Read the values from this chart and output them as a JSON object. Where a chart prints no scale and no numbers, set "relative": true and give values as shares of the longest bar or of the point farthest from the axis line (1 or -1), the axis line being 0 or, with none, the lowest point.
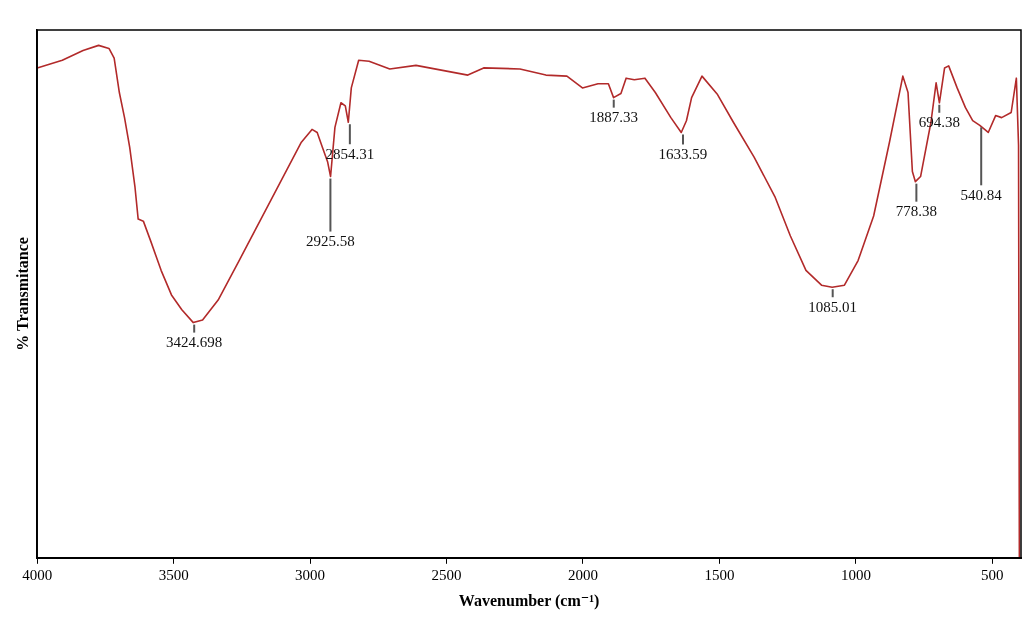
{
  "chart_data": {
    "type": "line",
    "relative": true,
    "xlabel": "Wavenumber (cm⁻¹)",
    "ylabel": "% Transmitance",
    "xlim": [
      4000,
      395
    ],
    "xticks": [
      4000,
      3500,
      3000,
      2500,
      2000,
      1500,
      1000,
      500
    ],
    "grid": false,
    "legend": false,
    "marker": "none",
    "line_style": "solid",
    "series": [
      {
        "color": "#b22a2a",
        "x": [
          4000,
          3908,
          3832,
          3775,
          3737,
          3718,
          3699,
          3680,
          3661,
          3642,
          3630,
          3611,
          3584,
          3546,
          3508,
          3470,
          3428,
          3394,
          3337,
          3260,
          3184,
          3108,
          3032,
          2993,
          2974,
          2955,
          2936,
          2925,
          2909,
          2887,
          2871,
          2860,
          2849,
          2822,
          2784,
          2708,
          2612,
          2422,
          2364,
          2231,
          2136,
          2059,
          2002,
          1945,
          1907,
          1888,
          1861,
          1842,
          1812,
          1773,
          1735,
          1678,
          1640,
          1621,
          1602,
          1564,
          1507,
          1449,
          1373,
          1297,
          1240,
          1183,
          1126,
          1087,
          1042,
          992,
          935,
          877,
          828,
          809,
          793,
          782,
          763,
          725,
          706,
          694,
          675,
          660,
          629,
          599,
          572,
          546,
          515,
          488,
          466,
          431,
          412,
          404,
          401
        ],
        "values": [
          0.956,
          0.971,
          0.99,
          1.0,
          0.994,
          0.975,
          0.908,
          0.859,
          0.801,
          0.725,
          0.661,
          0.657,
          0.618,
          0.561,
          0.513,
          0.484,
          0.459,
          0.464,
          0.503,
          0.58,
          0.657,
          0.734,
          0.811,
          0.836,
          0.83,
          0.801,
          0.773,
          0.744,
          0.84,
          0.888,
          0.882,
          0.85,
          0.917,
          0.971,
          0.969,
          0.954,
          0.961,
          0.942,
          0.956,
          0.954,
          0.942,
          0.94,
          0.917,
          0.925,
          0.925,
          0.898,
          0.906,
          0.936,
          0.933,
          0.936,
          0.908,
          0.859,
          0.83,
          0.853,
          0.898,
          0.94,
          0.904,
          0.85,
          0.782,
          0.705,
          0.628,
          0.561,
          0.532,
          0.528,
          0.532,
          0.58,
          0.667,
          0.811,
          0.94,
          0.908,
          0.754,
          0.734,
          0.744,
          0.85,
          0.927,
          0.888,
          0.956,
          0.96,
          0.917,
          0.879,
          0.853,
          0.844,
          0.83,
          0.863,
          0.859,
          0.869,
          0.936,
          0.805,
          0
        ]
      }
    ],
    "annotations": [
      {
        "text": "3424.698",
        "x": 3424.698,
        "y": 0.459
      },
      {
        "text": "2925.58",
        "x": 2925.58,
        "y": 0.744
      },
      {
        "text": "2854.31",
        "x": 2854.31,
        "y": 0.85
      },
      {
        "text": "1887.33",
        "x": 1887.33,
        "y": 0.898
      },
      {
        "text": "1633.59",
        "x": 1633.59,
        "y": 0.83
      },
      {
        "text": "1085.01",
        "x": 1085.01,
        "y": 0.528
      },
      {
        "text": "778.38",
        "x": 778.38,
        "y": 0.734
      },
      {
        "text": "694.38",
        "x": 694.38,
        "y": 0.888
      },
      {
        "text": "540.84",
        "x": 540.84,
        "y": 0.844
      }
    ]
  }
}
